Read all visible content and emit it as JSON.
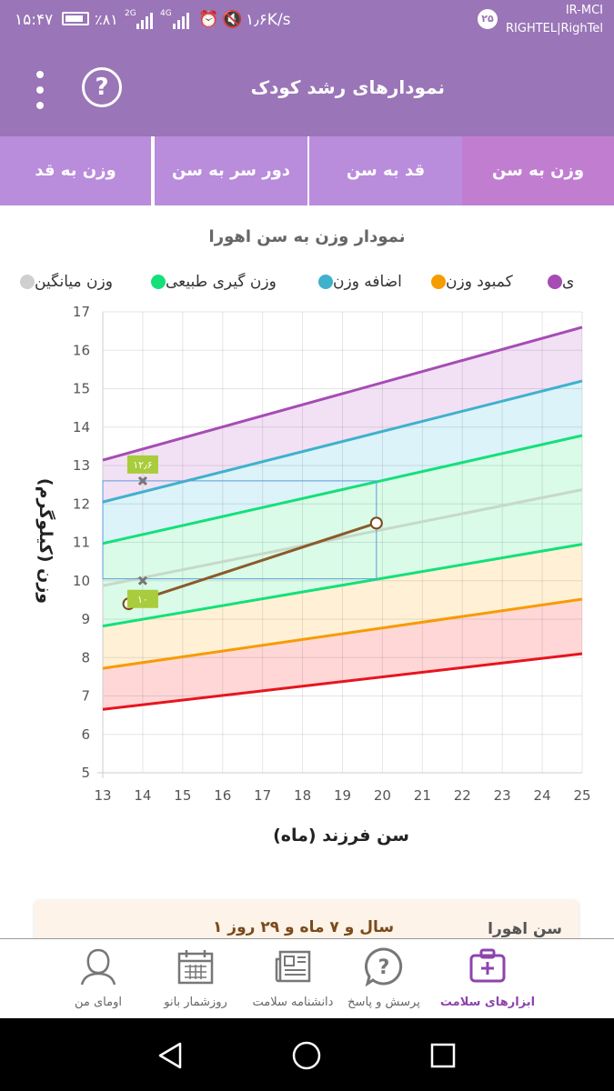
{
  "status_bar": {
    "time": "۱۵:۴۷",
    "battery": "٪۸۱",
    "network_a": "2G",
    "network_b": "4G",
    "speed": "۱٫۶K/s",
    "badge": "۲۵",
    "operator_1": "IR-MCI",
    "operator_2": "RIGHTEL|RighTel",
    "icons": [
      "battery-icon",
      "signal-icon",
      "alarm-icon",
      "mute-icon"
    ]
  },
  "app_bar": {
    "title": "نمودارهای رشد کودک",
    "help_glyph": "?",
    "icons": [
      "help-icon",
      "more-vertical-icon"
    ]
  },
  "tabs": [
    {
      "label": "وزن به سن",
      "active": true
    },
    {
      "label": "قد به سن",
      "active": false
    },
    {
      "label": "دور سر به سن",
      "active": false
    },
    {
      "label": "وزن به قد",
      "active": false
    }
  ],
  "chart_data": {
    "type": "line",
    "title": "نمودار وزن به سن اهورا",
    "xlabel": "سن فرزند (ماه)",
    "ylabel": "وزن (کیلوگرم)",
    "xlim": [
      13,
      25
    ],
    "ylim": [
      5,
      17
    ],
    "x_ticks": [
      13,
      14,
      15,
      16,
      17,
      18,
      19,
      20,
      21,
      22,
      23,
      24,
      25
    ],
    "y_ticks": [
      5,
      6,
      7,
      8,
      9,
      10,
      11,
      12,
      13,
      14,
      15,
      16,
      17
    ],
    "grid": true,
    "legend_position": "top",
    "legend": [
      {
        "name": "چاقی",
        "label": "ی",
        "color": "#a64cb4"
      },
      {
        "name": "کمبود وزن",
        "label": "کمبود وزن",
        "color": "#f59c00"
      },
      {
        "name": "اضافه وزن",
        "label": "اضافه وزن",
        "color": "#3fb1cc"
      },
      {
        "name": "وزن گیری طبیعی",
        "label": "وزن گیری طبیعی",
        "color": "#14e07a"
      },
      {
        "name": "وزن میانگین",
        "label": "وزن میانگین",
        "color": "#cfcfcf"
      }
    ],
    "reference_lines": [
      {
        "id": "severe-underweight",
        "color": "#e8141e",
        "x": [
          13,
          25
        ],
        "y": [
          6.65,
          8.1
        ]
      },
      {
        "id": "underweight",
        "color": "#f59c00",
        "x": [
          13,
          25
        ],
        "y": [
          7.72,
          9.52
        ]
      },
      {
        "id": "normal-low",
        "color": "#14e07a",
        "x": [
          13,
          25
        ],
        "y": [
          8.82,
          10.95
        ]
      },
      {
        "id": "median",
        "color": "#c8d8c8",
        "x": [
          13,
          25
        ],
        "y": [
          9.87,
          12.37
        ]
      },
      {
        "id": "normal-high",
        "color": "#14e07a",
        "x": [
          13,
          25
        ],
        "y": [
          10.97,
          13.78
        ]
      },
      {
        "id": "overweight",
        "color": "#3fb1cc",
        "x": [
          13,
          25
        ],
        "y": [
          12.05,
          15.2
        ]
      },
      {
        "id": "obese",
        "color": "#a64cb4",
        "x": [
          13,
          25
        ],
        "y": [
          13.14,
          16.6
        ]
      }
    ],
    "bands": [
      {
        "between": [
          "severe-underweight",
          "underweight"
        ],
        "color": "#ffd7d7"
      },
      {
        "between": [
          "underweight",
          "normal-low"
        ],
        "color": "#fff0d6"
      },
      {
        "between": [
          "normal-low",
          "normal-high"
        ],
        "color": "#d9fbe8"
      },
      {
        "between": [
          "normal-high",
          "overweight"
        ],
        "color": "#dcf3fa"
      },
      {
        "between": [
          "overweight",
          "obese"
        ],
        "color": "#f2e1f5"
      }
    ],
    "series": [
      {
        "color": "#8b5a2b",
        "x": [
          13.65,
          19.85
        ],
        "y": [
          9.4,
          11.5
        ]
      }
    ],
    "selection_box": {
      "x": [
        13,
        19.85
      ],
      "y": [
        10.05,
        12.6
      ],
      "color": "#5b9bd5"
    },
    "markers": [
      {
        "x": 14,
        "y": 12.6,
        "label": "۱۲٫۶"
      },
      {
        "x": 14,
        "y": 10.0,
        "label": "۱۰"
      }
    ]
  },
  "info_card": {
    "label": "سن اهورا",
    "value": "۱ سال و ۷ ماه و ۲۹ روز"
  },
  "bottom_nav": [
    {
      "label": "ابزارهای سلامت",
      "icon": "medical-kit-icon",
      "active": true
    },
    {
      "label": "پرسش و پاسخ",
      "icon": "question-bubble-icon",
      "active": false
    },
    {
      "label": "دانشنامه سلامت",
      "icon": "newspaper-icon",
      "active": false
    },
    {
      "label": "روزشمار بانو",
      "icon": "calendar-icon",
      "active": false
    },
    {
      "label": "اومای من",
      "icon": "user-avatar-icon",
      "active": false
    }
  ],
  "system_nav": {
    "icons": [
      "back-icon",
      "home-icon",
      "recents-icon"
    ]
  }
}
